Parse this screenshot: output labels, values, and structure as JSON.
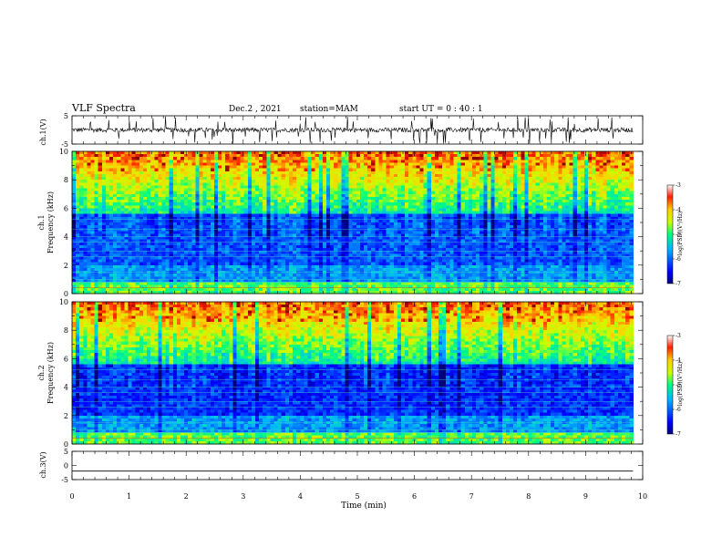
{
  "header": {
    "title": "VLF Spectra",
    "date": "Dec.2 , 2021",
    "station": "station=MAM",
    "start": "start UT = 0 : 40 : 1"
  },
  "chart_data": [
    {
      "type": "line",
      "name": "ch1-waveform",
      "ylabel": "ch.1(V)",
      "ylim": [
        -5,
        5
      ],
      "yticks": [
        "5",
        "-5"
      ],
      "xlim": [
        0,
        10
      ],
      "description_level": "noisy signal around 0 V"
    },
    {
      "type": "heatmap",
      "name": "ch1-spectrogram",
      "ylabel_line1": "ch.1",
      "ylabel_line2": "Frequency (kHz)",
      "ylim": [
        0,
        10
      ],
      "yticks": [
        "0",
        "2",
        "4",
        "6",
        "8",
        "10"
      ],
      "xlim": [
        0,
        9.83
      ],
      "colorbar": {
        "label": "log(PSD)(V²/Hz)",
        "range": [
          -7,
          -3
        ],
        "ticks": [
          "-3",
          "-4",
          "-5",
          "-6",
          "-7"
        ]
      }
    },
    {
      "type": "heatmap",
      "name": "ch2-spectrogram",
      "ylabel_line1": "ch.2",
      "ylabel_line2": "Frequency (kHz)",
      "ylim": [
        0,
        10
      ],
      "yticks": [
        "0",
        "2",
        "4",
        "6",
        "8",
        "10"
      ],
      "xlim": [
        0,
        9.83
      ],
      "colorbar": {
        "label": "log(PSD)(V²/Hz)",
        "range": [
          -7,
          -3
        ],
        "ticks": [
          "-3",
          "-4",
          "-5",
          "-6",
          "-7"
        ]
      }
    },
    {
      "type": "line",
      "name": "ch3-waveform",
      "ylabel": "ch.3(V)",
      "ylim": [
        -5,
        5
      ],
      "yticks": [
        "5",
        "0",
        "-5"
      ],
      "x": [
        0,
        9.83
      ],
      "y": [
        -2,
        -2
      ]
    }
  ],
  "xaxis": {
    "label": "Time (min)",
    "range": [
      0,
      10
    ],
    "ticks": [
      "0",
      "1",
      "2",
      "3",
      "4",
      "5",
      "6",
      "7",
      "8",
      "9",
      "10"
    ]
  }
}
